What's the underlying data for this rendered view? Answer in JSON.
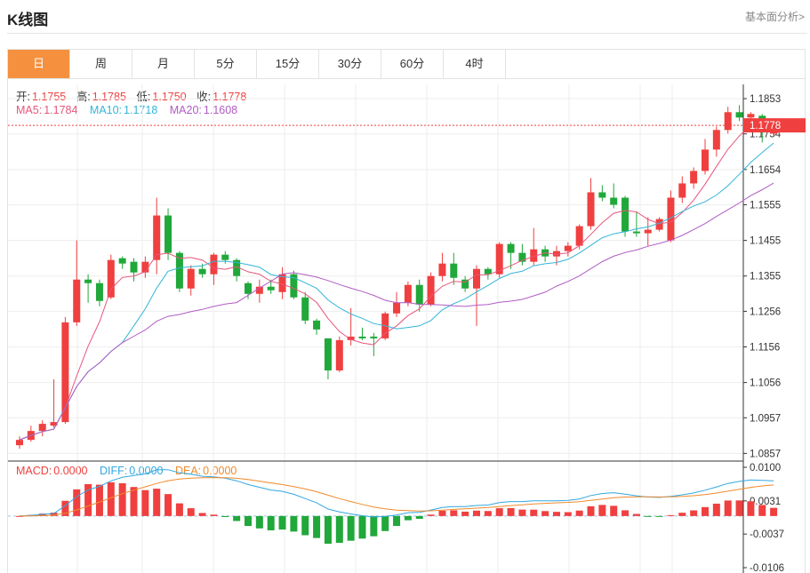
{
  "header": {
    "title": "K线图",
    "link": "基本面分析>"
  },
  "tabs": [
    {
      "label": "日",
      "active": true
    },
    {
      "label": "周"
    },
    {
      "label": "月"
    },
    {
      "label": "5分"
    },
    {
      "label": "15分"
    },
    {
      "label": "30分"
    },
    {
      "label": "60分"
    },
    {
      "label": "4时"
    }
  ],
  "ohlc": {
    "open_label": "开:",
    "open": "1.1755",
    "high_label": "高:",
    "high": "1.1785",
    "low_label": "低:",
    "low": "1.1750",
    "close_label": "收:",
    "close": "1.1778"
  },
  "ma": {
    "ma5_label": "MA5:",
    "ma5": "1.1784",
    "ma10_label": "MA10:",
    "ma10": "1.1718",
    "ma20_label": "MA20:",
    "ma20": "1.1608"
  },
  "macd": {
    "macd_label": "MACD:",
    "macd": "0.0000",
    "diff_label": "DIFF:",
    "diff": "0.0000",
    "dea_label": "DEA:",
    "dea": "0.0000"
  },
  "colors": {
    "up": "#f03f3f",
    "down": "#20a83a",
    "ma5": "#e8557b",
    "ma10": "#33b5d8",
    "ma20": "#b05cc4",
    "dea": "#f08a2c",
    "accent": "#f5913e"
  },
  "chart_data": [
    {
      "type": "candlestick",
      "yticks": [
        "1.1853",
        "1.1754",
        "1.1654",
        "1.1555",
        "1.1455",
        "1.1355",
        "1.1256",
        "1.1156",
        "1.1056",
        "1.0957",
        "1.0857"
      ],
      "ylim": [
        1.0838,
        1.1893
      ],
      "last_price": "1.1778",
      "candles": [
        [
          1.088,
          1.0905,
          1.087,
          1.0895
        ],
        [
          1.0895,
          1.0935,
          1.089,
          1.092
        ],
        [
          1.092,
          1.095,
          1.0905,
          1.094
        ],
        [
          1.0935,
          1.1065,
          1.093,
          1.0945
        ],
        [
          1.0945,
          1.124,
          1.094,
          1.1225
        ],
        [
          1.1225,
          1.1455,
          1.1215,
          1.1345
        ],
        [
          1.1345,
          1.136,
          1.128,
          1.1335
        ],
        [
          1.1335,
          1.1345,
          1.127,
          1.1285
        ],
        [
          1.1295,
          1.1415,
          1.129,
          1.14
        ],
        [
          1.1405,
          1.141,
          1.1375,
          1.139
        ],
        [
          1.1395,
          1.1405,
          1.134,
          1.1365
        ],
        [
          1.1365,
          1.141,
          1.135,
          1.1395
        ],
        [
          1.14,
          1.1575,
          1.136,
          1.1525
        ],
        [
          1.1525,
          1.1545,
          1.14,
          1.142
        ],
        [
          1.142,
          1.1425,
          1.131,
          1.132
        ],
        [
          1.132,
          1.1385,
          1.13,
          1.1375
        ],
        [
          1.1375,
          1.139,
          1.135,
          1.136
        ],
        [
          1.136,
          1.142,
          1.133,
          1.1415
        ],
        [
          1.1415,
          1.1425,
          1.139,
          1.14
        ],
        [
          1.14,
          1.1405,
          1.134,
          1.1355
        ],
        [
          1.1335,
          1.134,
          1.129,
          1.1305
        ],
        [
          1.1305,
          1.1345,
          1.128,
          1.1325
        ],
        [
          1.1325,
          1.1345,
          1.1305,
          1.1315
        ],
        [
          1.131,
          1.138,
          1.129,
          1.136
        ],
        [
          1.136,
          1.137,
          1.129,
          1.1295
        ],
        [
          1.1295,
          1.131,
          1.122,
          1.123
        ],
        [
          1.123,
          1.1235,
          1.119,
          1.1205
        ],
        [
          1.118,
          1.118,
          1.1065,
          1.109
        ],
        [
          1.109,
          1.1185,
          1.1085,
          1.1175
        ],
        [
          1.1175,
          1.1265,
          1.116,
          1.1185
        ],
        [
          1.1185,
          1.121,
          1.1175,
          1.118
        ],
        [
          1.1185,
          1.1195,
          1.113,
          1.118
        ],
        [
          1.118,
          1.1255,
          1.1175,
          1.125
        ],
        [
          1.125,
          1.131,
          1.124,
          1.128
        ],
        [
          1.128,
          1.134,
          1.127,
          1.133
        ],
        [
          1.133,
          1.1345,
          1.1255,
          1.1275
        ],
        [
          1.1275,
          1.1365,
          1.127,
          1.1355
        ],
        [
          1.1355,
          1.142,
          1.134,
          1.139
        ],
        [
          1.139,
          1.142,
          1.133,
          1.135
        ],
        [
          1.1345,
          1.1355,
          1.131,
          1.132
        ],
        [
          1.132,
          1.1385,
          1.1215,
          1.1375
        ],
        [
          1.1375,
          1.138,
          1.1345,
          1.136
        ],
        [
          1.136,
          1.145,
          1.135,
          1.1445
        ],
        [
          1.1445,
          1.145,
          1.1375,
          1.142
        ],
        [
          1.142,
          1.1445,
          1.1385,
          1.1395
        ],
        [
          1.1395,
          1.149,
          1.1385,
          1.143
        ],
        [
          1.143,
          1.144,
          1.1395,
          1.141
        ],
        [
          1.141,
          1.144,
          1.1385,
          1.1425
        ],
        [
          1.1425,
          1.145,
          1.141,
          1.144
        ],
        [
          1.144,
          1.15,
          1.143,
          1.1495
        ],
        [
          1.1495,
          1.163,
          1.1485,
          1.159
        ],
        [
          1.159,
          1.161,
          1.1565,
          1.1575
        ],
        [
          1.1575,
          1.1615,
          1.1545,
          1.1555
        ],
        [
          1.1575,
          1.158,
          1.1465,
          1.148
        ],
        [
          1.148,
          1.1535,
          1.1465,
          1.1475
        ],
        [
          1.1475,
          1.152,
          1.144,
          1.1485
        ],
        [
          1.1485,
          1.152,
          1.148,
          1.1515
        ],
        [
          1.1455,
          1.1595,
          1.145,
          1.1575
        ],
        [
          1.1575,
          1.1635,
          1.156,
          1.1615
        ],
        [
          1.1615,
          1.166,
          1.16,
          1.165
        ],
        [
          1.165,
          1.174,
          1.164,
          1.171
        ],
        [
          1.171,
          1.1775,
          1.169,
          1.1765
        ],
        [
          1.1765,
          1.183,
          1.1755,
          1.1815
        ],
        [
          1.1815,
          1.1835,
          1.179,
          1.18
        ],
        [
          1.18,
          1.1815,
          1.1795,
          1.181
        ],
        [
          1.1805,
          1.181,
          1.173,
          1.1765
        ],
        [
          1.1755,
          1.1785,
          1.175,
          1.1778
        ]
      ]
    },
    {
      "type": "macd",
      "yticks": [
        "0.0100",
        "0.0031",
        "-0.0037",
        "-0.0106"
      ],
      "ylim": [
        -0.0106,
        0.01
      ]
    }
  ]
}
